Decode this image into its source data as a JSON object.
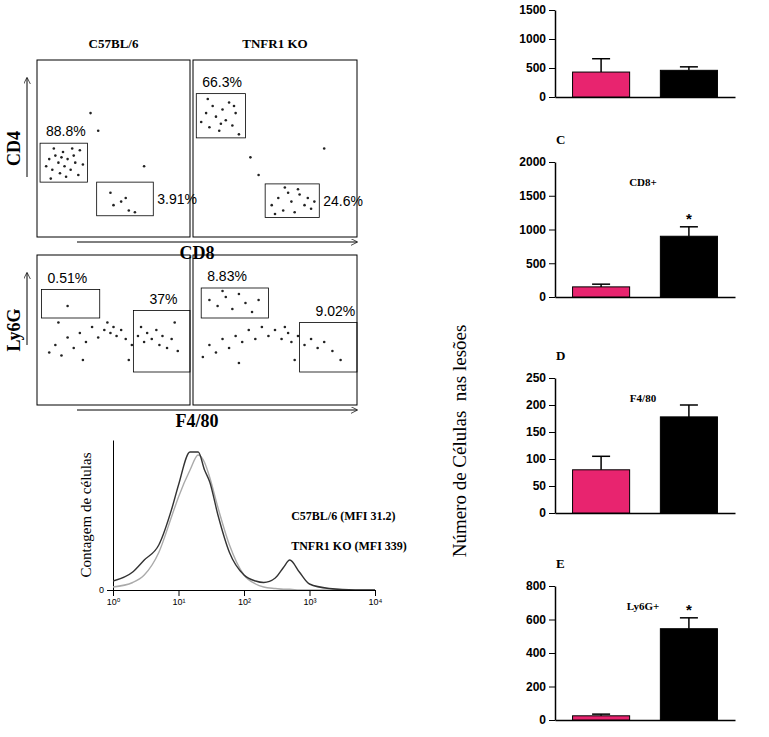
{
  "chart_data": [
    {
      "type": "scatter",
      "title": "C57BL/6",
      "xlabel": "CD8",
      "ylabel": "CD4",
      "tick_labels": false,
      "color": "#222222",
      "xlim": [
        0,
        100
      ],
      "ylim": [
        0,
        100
      ],
      "x": [
        6,
        8,
        10,
        12,
        14,
        15,
        17,
        18,
        20,
        22,
        24,
        25,
        27,
        28,
        30,
        11,
        19,
        23,
        9,
        16,
        40,
        55,
        60,
        48,
        35,
        70,
        50,
        58,
        64
      ],
      "y": [
        40,
        44,
        38,
        46,
        42,
        36,
        48,
        40,
        44,
        38,
        46,
        42,
        35,
        49,
        41,
        50,
        34,
        50,
        33,
        45,
        60,
        20,
        15,
        25,
        70,
        40,
        18,
        22,
        14
      ],
      "gates": [
        {
          "label": "88.8%",
          "x": [
            2,
            33
          ],
          "y": [
            31,
            53
          ]
        },
        {
          "label": "3.91%",
          "x": [
            39,
            76
          ],
          "y": [
            12,
            31
          ]
        }
      ]
    },
    {
      "type": "scatter",
      "title": "TNFR1 KO",
      "tick_labels": false,
      "color": "#222222",
      "xlim": [
        0,
        100
      ],
      "ylim": [
        0,
        100
      ],
      "x": [
        5,
        8,
        10,
        12,
        14,
        16,
        18,
        20,
        22,
        24,
        26,
        28,
        9,
        17,
        25,
        48,
        52,
        55,
        58,
        60,
        62,
        65,
        68,
        70,
        72,
        56,
        64,
        50,
        74,
        35,
        40,
        80
      ],
      "y": [
        65,
        70,
        62,
        74,
        68,
        60,
        72,
        66,
        76,
        63,
        70,
        58,
        78,
        64,
        74,
        18,
        22,
        15,
        25,
        20,
        14,
        24,
        18,
        22,
        16,
        28,
        27,
        13,
        20,
        45,
        35,
        50
      ],
      "gates": [
        {
          "label": "66.3%",
          "x": [
            2,
            32
          ],
          "y": [
            56,
            81
          ]
        },
        {
          "label": "24.6%",
          "x": [
            44,
            77
          ],
          "y": [
            11,
            30
          ]
        }
      ]
    },
    {
      "type": "scatter",
      "xlabel": "F4/80",
      "ylabel": "Ly6G",
      "tick_labels": false,
      "color": "#222222",
      "xlim": [
        0,
        100
      ],
      "ylim": [
        0,
        100
      ],
      "x": [
        8,
        12,
        16,
        20,
        24,
        28,
        32,
        36,
        40,
        44,
        46,
        48,
        50,
        52,
        55,
        58,
        62,
        66,
        68,
        70,
        72,
        75,
        78,
        80,
        82,
        85,
        88,
        92,
        30,
        60,
        14,
        90,
        20
      ],
      "y": [
        35,
        40,
        33,
        45,
        38,
        48,
        42,
        52,
        45,
        50,
        55,
        48,
        52,
        46,
        50,
        44,
        40,
        46,
        52,
        42,
        48,
        44,
        50,
        40,
        46,
        38,
        44,
        36,
        30,
        30,
        55,
        55,
        66
      ],
      "gates": [
        {
          "label": "0.51%",
          "x": [
            3,
            41
          ],
          "y": [
            58,
            77
          ]
        },
        {
          "label": "37%",
          "x": [
            63,
            100
          ],
          "y": [
            22,
            63
          ]
        }
      ]
    },
    {
      "type": "scatter",
      "tick_labels": false,
      "color": "#222222",
      "xlim": [
        0,
        100
      ],
      "ylim": [
        0,
        100
      ],
      "x": [
        6,
        10,
        14,
        18,
        22,
        26,
        30,
        34,
        38,
        42,
        46,
        50,
        54,
        56,
        58,
        60,
        64,
        68,
        72,
        76,
        80,
        85,
        90,
        28,
        62,
        10,
        15,
        20,
        24,
        28,
        32,
        36,
        40,
        18
      ],
      "y": [
        32,
        40,
        35,
        44,
        38,
        46,
        42,
        50,
        44,
        52,
        46,
        50,
        44,
        52,
        48,
        42,
        46,
        40,
        44,
        38,
        42,
        36,
        30,
        28,
        30,
        70,
        66,
        72,
        64,
        74,
        68,
        62,
        70,
        76
      ],
      "gates": [
        {
          "label": "8.83%",
          "x": [
            5,
            46
          ],
          "y": [
            58,
            78
          ]
        },
        {
          "label": "9.02%",
          "x": [
            65,
            100
          ],
          "y": [
            22,
            55
          ]
        }
      ]
    },
    {
      "type": "line",
      "log": "x",
      "ylabel": "Contagem de células",
      "xlim": [
        1,
        10000
      ],
      "ylim": [
        0,
        100
      ],
      "xticks": [
        {
          "value": 1,
          "label": "10⁰"
        },
        {
          "value": 10,
          "label": "10¹"
        },
        {
          "value": 100,
          "label": "10²"
        },
        {
          "value": 1000,
          "label": "10³"
        },
        {
          "value": 10000,
          "label": "10⁴"
        }
      ],
      "yticks": [
        0
      ],
      "x": [
        1,
        2,
        3,
        5,
        8,
        10,
        15,
        20,
        25,
        30,
        40,
        60,
        100,
        150,
        200,
        300,
        400,
        500,
        700,
        1000,
        2000,
        5000,
        10000
      ],
      "series": [
        {
          "name": "C57BL/6 (MFI 31.2)",
          "color": "#aaaaaa",
          "values": [
            2,
            5,
            10,
            25,
            50,
            62,
            80,
            90,
            85,
            75,
            55,
            30,
            10,
            4,
            2,
            1,
            0.5,
            0.5,
            0,
            0,
            0,
            0,
            0
          ]
        },
        {
          "name": "TNFR1 KO (MFI 339)",
          "color": "#333333",
          "values": [
            6,
            12,
            20,
            30,
            55,
            70,
            92,
            92,
            80,
            72,
            50,
            25,
            10,
            6,
            5,
            8,
            15,
            20,
            12,
            4,
            1,
            0,
            0
          ]
        }
      ]
    },
    {
      "type": "bar",
      "categories": [
        null,
        null
      ],
      "values": [
        430,
        460
      ],
      "errors": [
        230,
        60
      ],
      "colors": [
        "#e8246f",
        "#000000"
      ],
      "ylim": [
        0,
        1500
      ],
      "yticks": [
        0,
        500,
        1000,
        1500
      ]
    },
    {
      "type": "bar",
      "panel": "C",
      "title": "CD8+",
      "categories": [
        null,
        null
      ],
      "values": [
        150,
        900
      ],
      "errors": [
        40,
        140
      ],
      "colors": [
        "#e8246f",
        "#000000"
      ],
      "ylim": [
        0,
        2000
      ],
      "yticks": [
        0,
        500,
        1000,
        1500,
        2000
      ],
      "annotations": [
        {
          "text": "*",
          "category": 1
        }
      ]
    },
    {
      "type": "bar",
      "panel": "D",
      "title": "F4/80",
      "ylabel": "Número de Células  nas lesões",
      "categories": [
        null,
        null
      ],
      "values": [
        80,
        178
      ],
      "errors": [
        25,
        22
      ],
      "colors": [
        "#e8246f",
        "#000000"
      ],
      "ylim": [
        0,
        250
      ],
      "yticks": [
        0,
        50,
        100,
        150,
        200,
        250
      ]
    },
    {
      "type": "bar",
      "panel": "E",
      "title": "Ly6G+",
      "categories": [
        null,
        null
      ],
      "values": [
        25,
        545
      ],
      "errors": [
        10,
        65
      ],
      "colors": [
        "#e8246f",
        "#000000"
      ],
      "ylim": [
        0,
        800
      ],
      "yticks": [
        0,
        200,
        400,
        600,
        800
      ],
      "annotations": [
        {
          "text": "*",
          "category": 1
        }
      ]
    }
  ]
}
